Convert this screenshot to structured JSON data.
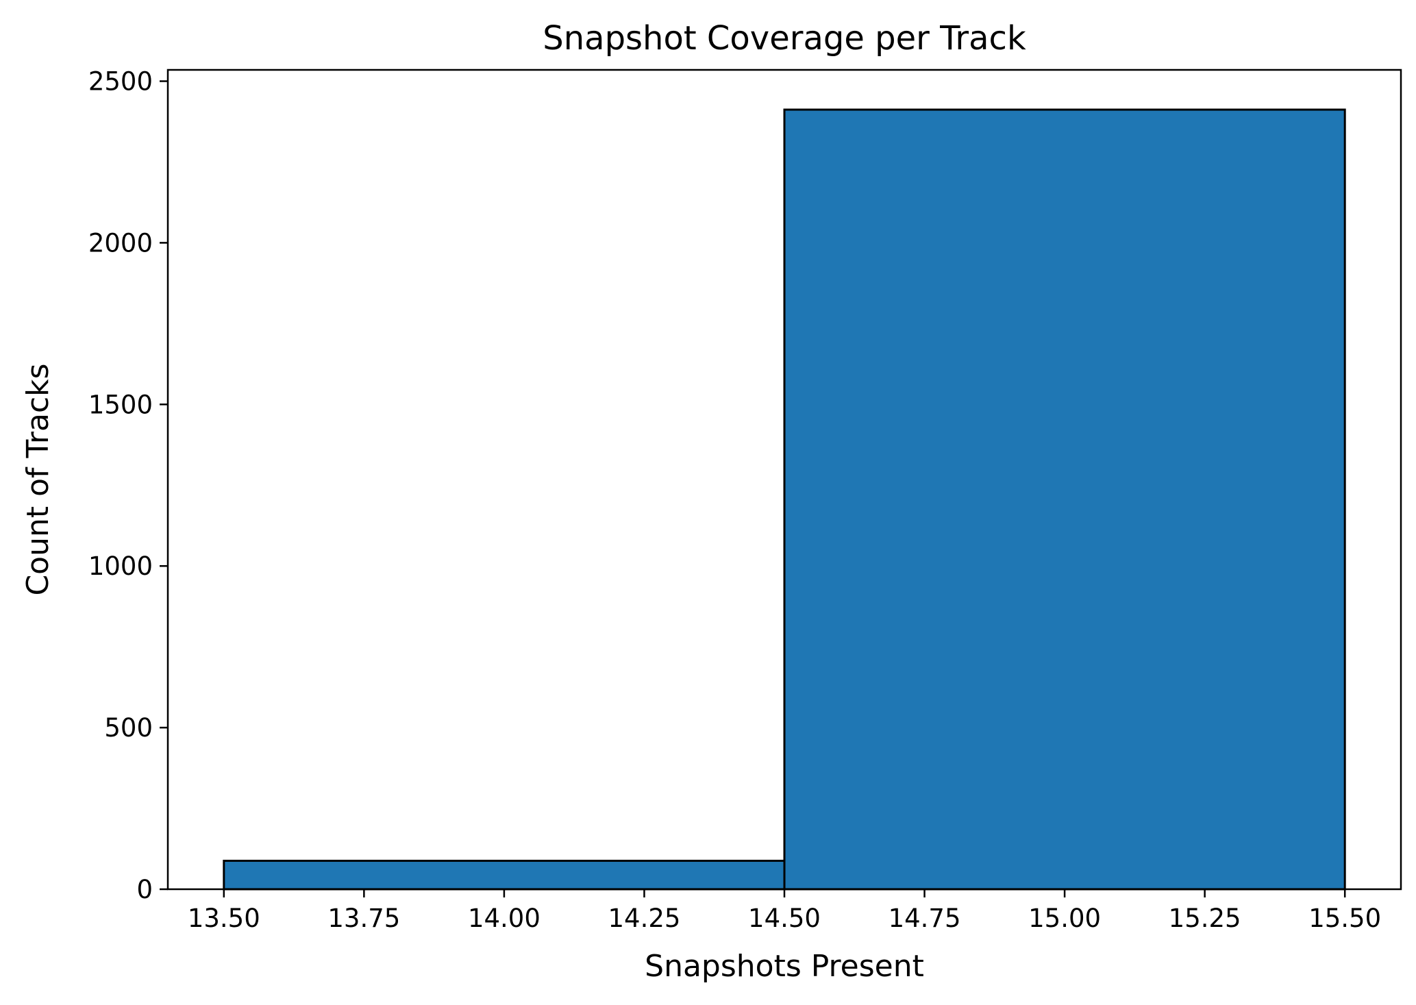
{
  "chart_data": {
    "type": "bar",
    "title": "Snapshot Coverage per Track",
    "xlabel": "Snapshots Present",
    "ylabel": "Count of Tracks",
    "xlim": [
      13.4,
      15.6
    ],
    "ylim": [
      0,
      2535
    ],
    "xticks": [
      13.5,
      13.75,
      14.0,
      14.25,
      14.5,
      14.75,
      15.0,
      15.25,
      15.5
    ],
    "xtick_labels": [
      "13.50",
      "13.75",
      "14.00",
      "14.25",
      "14.50",
      "14.75",
      "15.00",
      "15.25",
      "15.50"
    ],
    "yticks": [
      0,
      500,
      1000,
      1500,
      2000,
      2500
    ],
    "ytick_labels": [
      "0",
      "500",
      "1000",
      "1500",
      "2000",
      "2500"
    ],
    "bins": [
      {
        "x0": 13.5,
        "x1": 14.5,
        "value": 88
      },
      {
        "x0": 14.5,
        "x1": 15.5,
        "value": 2412
      }
    ],
    "bar_color": "#1f77b4",
    "edge_color": "#000000",
    "grid": false,
    "legend": "none"
  }
}
